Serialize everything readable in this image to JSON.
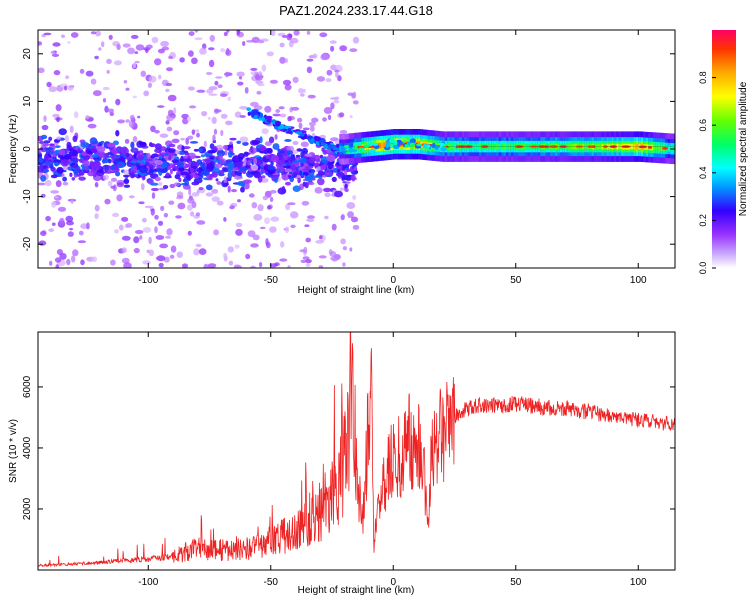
{
  "title": "PAZ1.2024.233.17.44.G18",
  "colors": {
    "snr_line": "#ee2222",
    "axis": "#000000",
    "background": "#ffffff"
  },
  "chart_data": [
    {
      "type": "heatmap",
      "name": "spectrogram",
      "xlabel": "Height of straight line (km)",
      "ylabel": "Frequency (Hz)",
      "xlim": [
        -145,
        115
      ],
      "ylim": [
        -25,
        25
      ],
      "x_ticks": [
        -100,
        -50,
        0,
        50,
        100
      ],
      "x_tick_labels": [
        "-100",
        "-50",
        "0",
        "50",
        "100"
      ],
      "y_ticks": [
        -20,
        -10,
        0,
        10,
        20
      ],
      "y_tick_labels": [
        "-20",
        "-10",
        "0",
        "10",
        "20"
      ],
      "colorbar": {
        "label": "Normalized spectral amplitude",
        "range": [
          0,
          1
        ],
        "ticks": [
          0.0,
          0.2,
          0.4,
          0.6,
          0.8
        ],
        "tick_labels": [
          "0.0",
          "0.2",
          "0.4",
          "0.6",
          "0.8"
        ],
        "colormap": [
          "#ffffff",
          "#9933ff",
          "#3300ff",
          "#0099ff",
          "#00ffff",
          "#00ff66",
          "#66ff00",
          "#ffff00",
          "#ffaa00",
          "#ff3300",
          "#ff0066"
        ]
      },
      "main_ridge": {
        "description_points_x": [
          -20,
          -10,
          0,
          10,
          20,
          40,
          60,
          80,
          100,
          115
        ],
        "description_points_freq": [
          0,
          0.5,
          1,
          1,
          0.5,
          0.5,
          0.5,
          0.5,
          0.5,
          0
        ],
        "description_points_amp": [
          0.35,
          0.75,
          0.85,
          0.8,
          0.55,
          0.5,
          0.55,
          0.6,
          0.75,
          0.4
        ]
      },
      "noise_region": {
        "x_range": [
          -145,
          -15
        ],
        "freq_range": [
          -25,
          25
        ],
        "dense_freq_band": [
          -10,
          8
        ]
      }
    },
    {
      "type": "line",
      "name": "snr",
      "xlabel": "Height of straight line (km)",
      "ylabel": "SNR (10 * v/v)",
      "xlim": [
        -145,
        115
      ],
      "ylim": [
        0,
        7800
      ],
      "x_ticks": [
        -100,
        -50,
        0,
        50,
        100
      ],
      "x_tick_labels": [
        "-100",
        "-50",
        "0",
        "50",
        "100"
      ],
      "y_ticks": [
        2000,
        4000,
        6000
      ],
      "y_tick_labels": [
        "2000",
        "4000",
        "6000"
      ],
      "series": [
        {
          "x": [
            -145,
            -130,
            -120,
            -110,
            -100,
            -90,
            -85,
            -80,
            -75,
            -70,
            -65,
            -60,
            -55,
            -50,
            -45,
            -40,
            -35,
            -30,
            -28,
            -25,
            -22,
            -20,
            -18,
            -17,
            -15,
            -12,
            -10,
            -9,
            -8,
            -6,
            -4,
            -2,
            0,
            2,
            4,
            5,
            6,
            8,
            10,
            12,
            14,
            16,
            18,
            20,
            22,
            25,
            28,
            30,
            35,
            40,
            45,
            50,
            55,
            60,
            65,
            70,
            75,
            80,
            85,
            90,
            95,
            100,
            105,
            110,
            115
          ],
          "y": [
            150,
            200,
            250,
            300,
            350,
            450,
            550,
            700,
            700,
            650,
            650,
            700,
            750,
            900,
            1100,
            1300,
            1600,
            2000,
            2200,
            2500,
            3000,
            3400,
            4200,
            7700,
            2800,
            1800,
            5000,
            6600,
            700,
            2200,
            3000,
            3400,
            3500,
            3600,
            3800,
            4100,
            4800,
            3600,
            3900,
            4300,
            1200,
            4200,
            4500,
            4700,
            4800,
            5000,
            5200,
            5300,
            5400,
            5400,
            5400,
            5450,
            5400,
            5350,
            5300,
            5300,
            5200,
            5200,
            5100,
            5000,
            5000,
            4900,
            4900,
            4800,
            4800
          ]
        }
      ]
    }
  ]
}
